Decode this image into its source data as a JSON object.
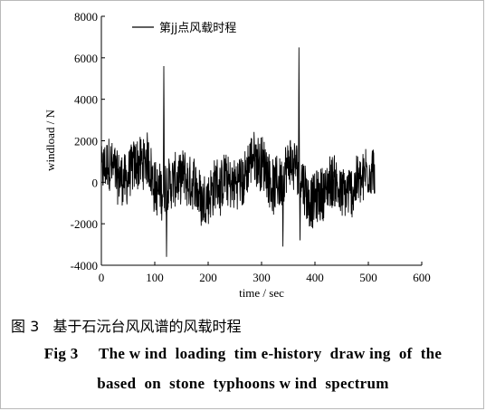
{
  "chart_data": {
    "type": "line",
    "xlabel": "time / sec",
    "ylabel": "windload / N",
    "xlim": [
      0,
      600
    ],
    "ylim": [
      -4000,
      8000
    ],
    "xticks": [
      "0",
      "100",
      "200",
      "300",
      "400",
      "500",
      "600"
    ],
    "yticks": [
      "-4000",
      "-2000",
      "0",
      "2000",
      "4000",
      "6000",
      "8000"
    ],
    "grid": false,
    "legend_position": "top-left",
    "series": [
      {
        "name": "第jj点风载时程",
        "color": "#000000",
        "duration": 512,
        "peaks": [
          {
            "x": 117,
            "y": 5600
          },
          {
            "x": 122,
            "y": -3600
          },
          {
            "x": 340,
            "y": -3100
          },
          {
            "x": 370,
            "y": 6500
          },
          {
            "x": 372,
            "y": -2800
          }
        ]
      }
    ]
  },
  "caption": {
    "cn": "图 3   基于石沅台风风谱的风载时程",
    "en_line1": "Fig 3     The w ind  loading  tim e-history  draw ing  of  the",
    "en_line2": "based  on  stone  typhoons w ind  spectrum"
  }
}
